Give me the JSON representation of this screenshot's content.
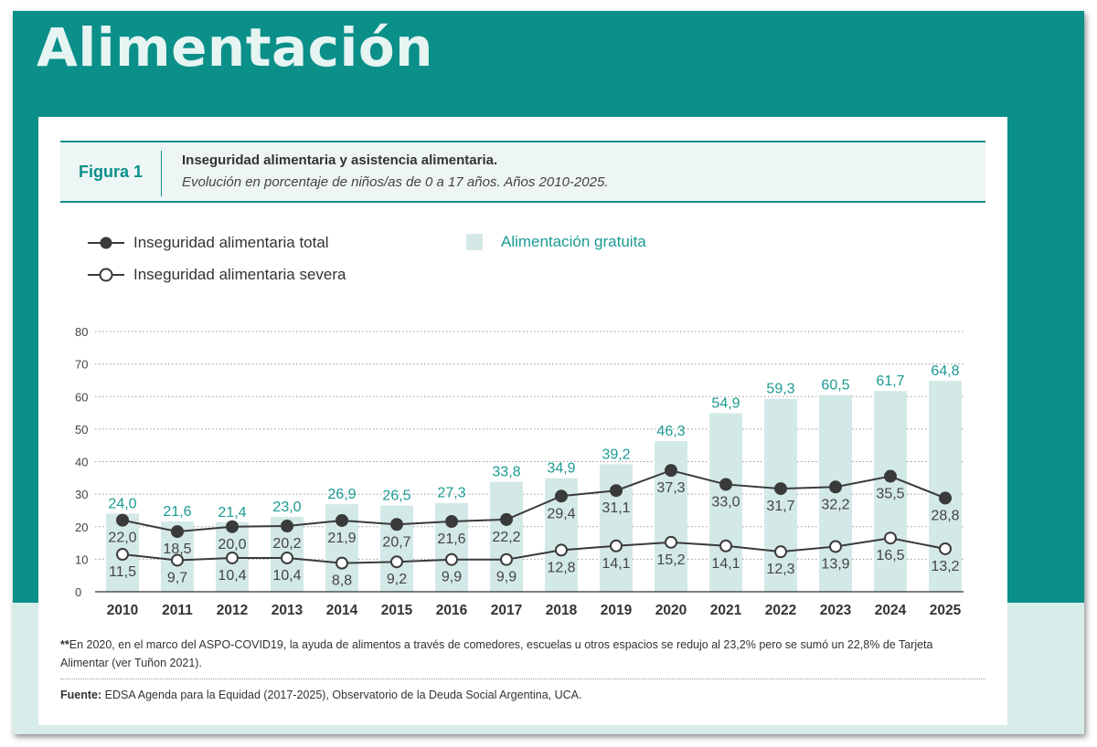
{
  "page": {
    "title": "Alimentación"
  },
  "figure": {
    "label": "Figura 1",
    "title": "Inseguridad alimentaria y asistencia alimentaria.",
    "subtitle": "Evolución en porcentaje de niños/as de 0 a 17 años. Años 2010-2025."
  },
  "legend": {
    "total": "Inseguridad alimentaria total",
    "severe": "Inseguridad alimentaria severa",
    "free_food": "Alimentación gratuita"
  },
  "note": {
    "marker": "**",
    "text": "En 2020, en el marco del ASPO-COVID19, la ayuda de alimentos a través de comedores, escuelas u otros espacios se redujo al 23,2% pero se sumó un 22,8% de Tarjeta Alimentar (ver Tuñon 2021)."
  },
  "source": {
    "label": "Fuente:",
    "text": "EDSA Agenda para la Equidad (2017-2025), Observatorio de la Deuda Social Argentina, UCA."
  },
  "colors": {
    "band": "#0a8f89",
    "bar": "#d3e9e7",
    "bar_label": "#1a9a92",
    "line": "#3a3a3a"
  },
  "chart_data": {
    "type": "bar",
    "categories": [
      "2010",
      "2011",
      "2012",
      "2013",
      "2014",
      "2015",
      "2016",
      "2017",
      "2018",
      "2019",
      "2020",
      "2021",
      "2022",
      "2023",
      "2024",
      "2025"
    ],
    "ylim": [
      0,
      80
    ],
    "yticks": [
      0,
      10,
      20,
      30,
      40,
      50,
      60,
      70,
      80
    ],
    "grid": true,
    "legend_position": "top-left",
    "series": [
      {
        "name": "Alimentación gratuita",
        "kind": "bar",
        "values": [
          24.0,
          21.6,
          21.4,
          23.0,
          26.9,
          26.5,
          27.3,
          33.8,
          34.9,
          39.2,
          46.3,
          54.9,
          59.3,
          60.5,
          61.7,
          64.8
        ]
      },
      {
        "name": "Inseguridad alimentaria total",
        "kind": "line",
        "marker": "filled",
        "values": [
          22.0,
          18.5,
          20.0,
          20.2,
          21.9,
          20.7,
          21.6,
          22.2,
          29.4,
          31.1,
          37.3,
          33.0,
          31.7,
          32.2,
          35.5,
          28.8
        ]
      },
      {
        "name": "Inseguridad alimentaria severa",
        "kind": "line",
        "marker": "open",
        "values": [
          11.5,
          9.7,
          10.4,
          10.4,
          8.8,
          9.2,
          9.9,
          9.9,
          12.8,
          14.1,
          15.2,
          14.1,
          12.3,
          13.9,
          16.5,
          13.2
        ]
      }
    ]
  }
}
